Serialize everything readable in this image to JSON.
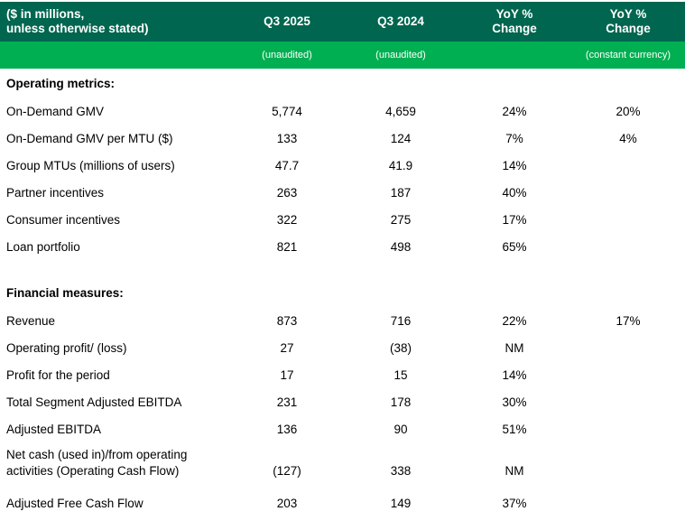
{
  "colors": {
    "header_bg": "#00664F",
    "subheader_bg": "#00AF51",
    "header_text": "#FFFFFF",
    "body_text": "#000000",
    "page_bg": "#FFFFFF"
  },
  "header": {
    "title_line1": "($ in millions,",
    "title_line2": "unless otherwise stated)",
    "columns": {
      "q3_2025": "Q3 2025",
      "q3_2024": "Q3 2024",
      "yoy_l1": "YoY %",
      "yoy_l2": "Change",
      "yoy_cc_l1": "YoY %",
      "yoy_cc_l2": "Change"
    },
    "subheader": {
      "q3_2025": "(unaudited)",
      "q3_2024": "(unaudited)",
      "yoy": "",
      "yoy_cc": "(constant currency)"
    }
  },
  "sections": [
    {
      "title": "Operating metrics:",
      "rows": [
        {
          "label": "On-Demand GMV",
          "v1": "5,774",
          "v2": "4,659",
          "v3": "24%",
          "v4": "20%"
        },
        {
          "label": "On-Demand GMV per MTU ($)",
          "v1": "133",
          "v2": "124",
          "v3": "7%",
          "v4": "4%"
        },
        {
          "label": "Group MTUs (millions of users)",
          "v1": "47.7",
          "v2": "41.9",
          "v3": "14%",
          "v4": ""
        },
        {
          "label": "Partner incentives",
          "v1": "263",
          "v2": "187",
          "v3": "40%",
          "v4": ""
        },
        {
          "label": "Consumer incentives",
          "v1": "322",
          "v2": "275",
          "v3": "17%",
          "v4": ""
        },
        {
          "label": "Loan portfolio",
          "v1": "821",
          "v2": "498",
          "v3": "65%",
          "v4": ""
        }
      ]
    },
    {
      "title": "Financial measures:",
      "rows": [
        {
          "label": "Revenue",
          "v1": "873",
          "v2": "716",
          "v3": "22%",
          "v4": "17%"
        },
        {
          "label": "Operating profit/ (loss)",
          "v1": "27",
          "v2": "(38)",
          "v3": "NM",
          "v4": ""
        },
        {
          "label": "Profit for the period",
          "v1": "17",
          "v2": "15",
          "v3": "14%",
          "v4": ""
        },
        {
          "label": "Total Segment Adjusted EBITDA",
          "v1": "231",
          "v2": "178",
          "v3": "30%",
          "v4": ""
        },
        {
          "label": "Adjusted EBITDA",
          "v1": "136",
          "v2": "90",
          "v3": "51%",
          "v4": ""
        },
        {
          "label": "Net cash (used in)/from operating activities (Operating Cash Flow)",
          "v1": "(127)",
          "v2": "338",
          "v3": "NM",
          "v4": ""
        },
        {
          "label": "Adjusted Free Cash Flow",
          "v1": "203",
          "v2": "149",
          "v3": "37%",
          "v4": ""
        }
      ]
    }
  ]
}
